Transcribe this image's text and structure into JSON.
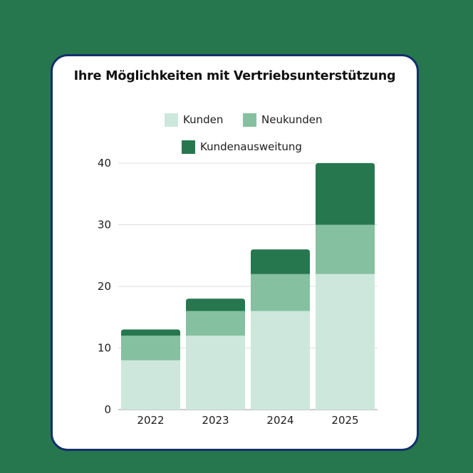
{
  "colors": {
    "page_background": "#27774e",
    "card_background": "#ffffff",
    "card_border": "#12306b"
  },
  "chart_data": {
    "type": "bar",
    "stacked": true,
    "title": "Ihre Möglichkeiten mit Vertriebsunterstützung",
    "categories": [
      "2022",
      "2023",
      "2024",
      "2025"
    ],
    "series": [
      {
        "name": "Kunden",
        "color": "#cde7dc",
        "values": [
          8,
          12,
          16,
          22
        ]
      },
      {
        "name": "Neukunden",
        "color": "#85c0a0",
        "values": [
          4,
          4,
          6,
          8
        ]
      },
      {
        "name": "Kundenausweitung",
        "color": "#27774e",
        "values": [
          1,
          2,
          4,
          10
        ]
      }
    ],
    "ylim": [
      0,
      40
    ],
    "yticks": [
      0,
      10,
      20,
      30,
      40
    ],
    "grid": true,
    "legend": "top"
  }
}
